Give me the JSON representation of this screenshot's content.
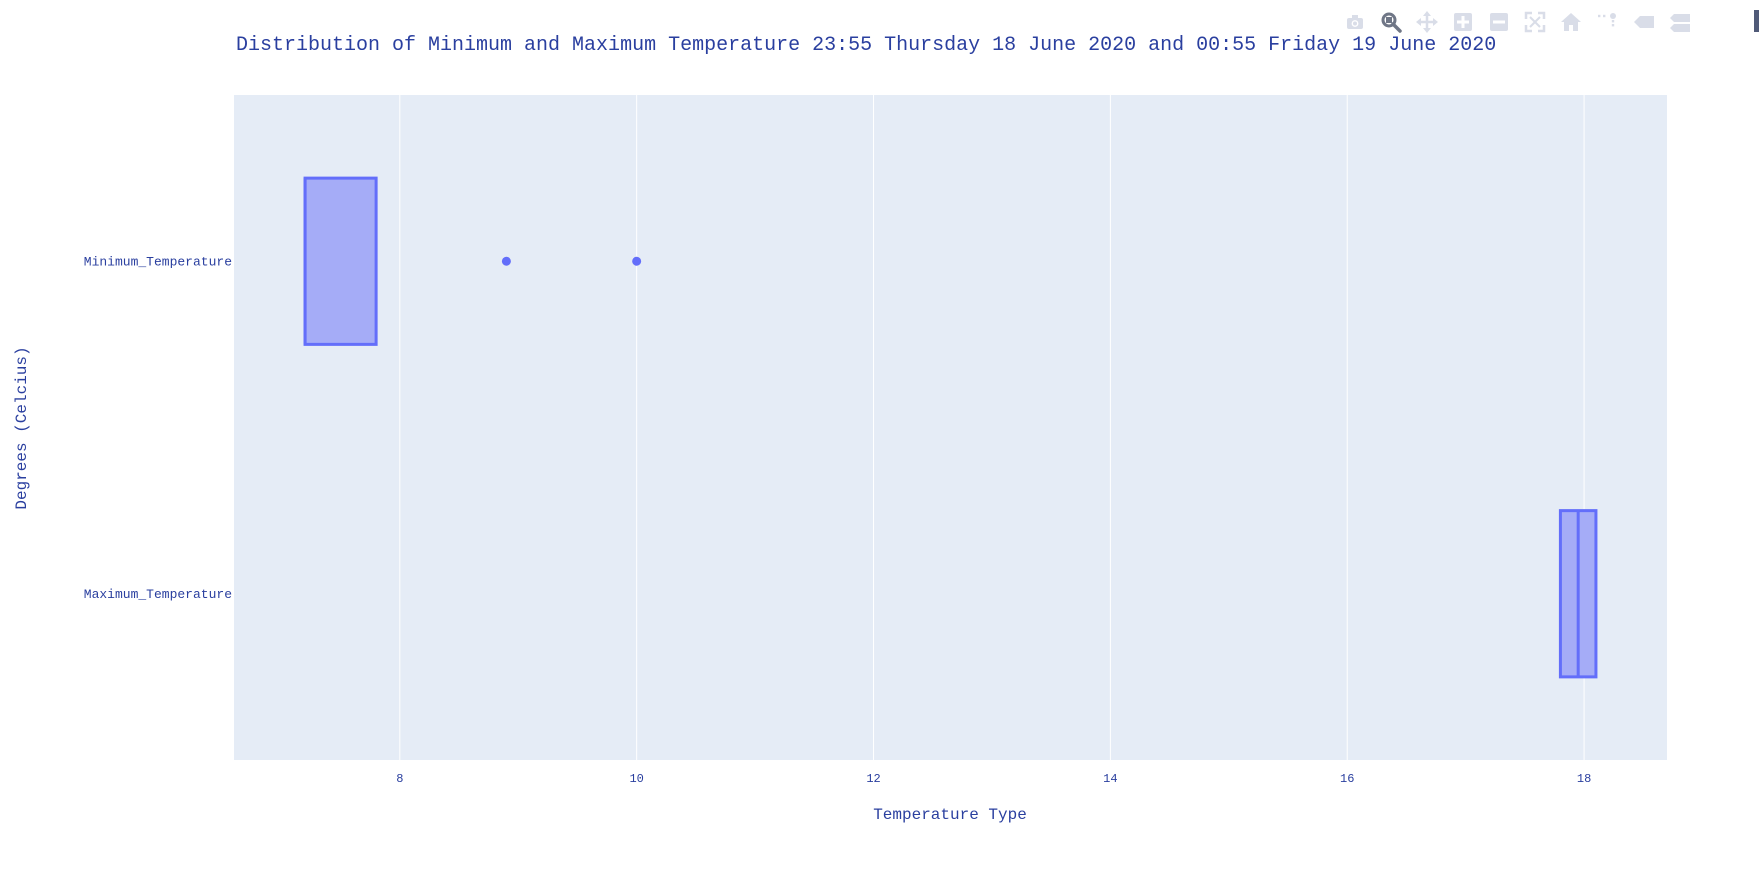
{
  "chart_data": {
    "type": "box",
    "orientation": "horizontal",
    "title": "Distribution of Minimum and Maximum Temperature 23:55 Thursday 18 June 2020 and 00:55 Friday 19 June 2020",
    "xlabel": "Temperature Type",
    "ylabel": "Degrees (Celcius)",
    "xlim": [
      6.6,
      18.7
    ],
    "x_ticks": [
      8,
      10,
      12,
      14,
      16,
      18
    ],
    "grid": true,
    "categories": [
      "Minimum_Temperature",
      "Maximum_Temperature"
    ],
    "series": [
      {
        "category": "Minimum_Temperature",
        "q1": 7.2,
        "median": 7.2,
        "q3": 7.8,
        "lower_whisker": 7.2,
        "upper_whisker": 7.8,
        "outliers": [
          8.9,
          10.0
        ]
      },
      {
        "category": "Maximum_Temperature",
        "q1": 17.8,
        "median": 17.95,
        "q3": 18.1,
        "lower_whisker": 17.8,
        "upper_whisker": 18.1,
        "outliers": []
      }
    ],
    "colors": {
      "box_line": "#636efa",
      "box_fill": "#a5acf7",
      "plot_bg": "#e5ecf6",
      "grid": "#ffffff",
      "text": "#2a3f9f"
    }
  },
  "modebar": {
    "icons": [
      "camera-icon",
      "zoom-icon",
      "pan-icon",
      "zoom-in-icon",
      "zoom-out-icon",
      "autoscale-icon",
      "home-icon",
      "spike-lines-icon",
      "hover-closest-icon",
      "hover-compare-icon"
    ],
    "active": "zoom-icon",
    "icon_color": "#d9dde8",
    "active_color": "#6f7686"
  }
}
